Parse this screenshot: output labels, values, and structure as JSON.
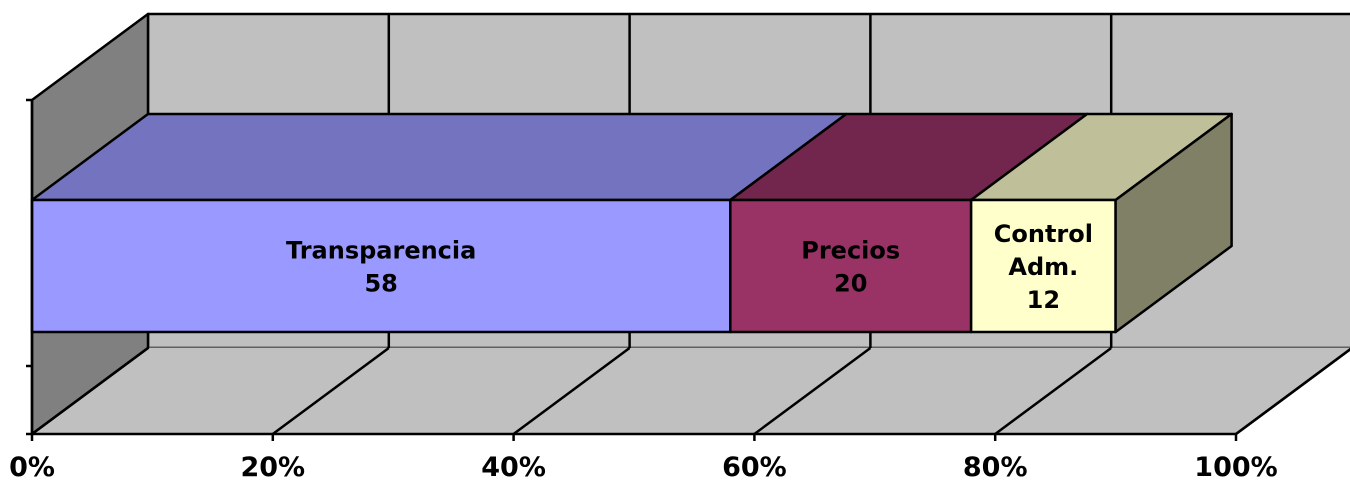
{
  "chart_data": {
    "type": "bar",
    "orientation": "horizontal",
    "stacking": "percent",
    "three_d": true,
    "xlim": [
      0,
      100
    ],
    "x_ticks": [
      "0%",
      "20%",
      "40%",
      "60%",
      "80%",
      "100%"
    ],
    "grid": true,
    "series": [
      {
        "label_lines": [
          "Transparencia",
          "58"
        ],
        "value": 58,
        "color": "#9999ff",
        "top_color": "#7373bf",
        "side_color": "#5f5f9f"
      },
      {
        "label_lines": [
          "Precios",
          "20"
        ],
        "value": 20,
        "color": "#993366",
        "top_color": "#73264d",
        "side_color": "#5f2040"
      },
      {
        "label_lines": [
          "Control",
          "Adm.",
          "12"
        ],
        "value": 12,
        "color": "#ffffcc",
        "top_color": "#bfbf99",
        "side_color": "#808066"
      }
    ],
    "colors": {
      "back_wall": "#c0c0c0",
      "floor": "#c0c0c0",
      "side_wall": "#808080"
    }
  }
}
